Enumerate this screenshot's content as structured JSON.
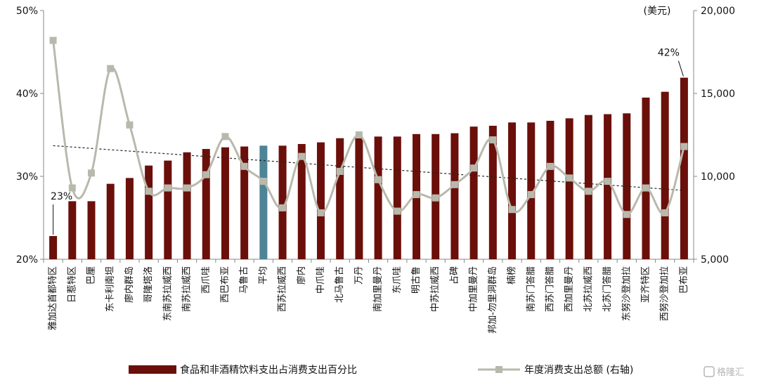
{
  "chart_data": {
    "type": "bar",
    "categories": [
      "雅加达首都特区",
      "日惹特区",
      "巴厘",
      "东卡利南坦",
      "廖内群岛",
      "哥隆塔洛",
      "东南苏拉威西",
      "南苏拉威西",
      "西爪哇",
      "西巴布亚",
      "马鲁古",
      "平均",
      "西苏拉威西",
      "廖内",
      "中爪哇",
      "北马鲁古",
      "万丹",
      "南加里曼丹",
      "东爪哇",
      "明古鲁",
      "中苏拉威西",
      "占碑",
      "中加里曼丹",
      "邦加-勿里洞群岛",
      "楠榜",
      "南苏门答腊",
      "西苏门答腊",
      "西加里曼丹",
      "北苏拉威西",
      "北苏门答腊",
      "东努沙登加拉",
      "亚齐特区",
      "西努沙登加拉",
      "巴布亚"
    ],
    "series": [
      {
        "name": "食品和非酒精饮料支出占消费支出百分比",
        "axis": "left",
        "values": [
          22.8,
          27.0,
          27.0,
          29.1,
          29.8,
          31.3,
          31.9,
          32.9,
          33.3,
          33.5,
          33.6,
          33.7,
          33.7,
          33.9,
          34.1,
          34.6,
          34.8,
          34.8,
          34.8,
          35.1,
          35.1,
          35.2,
          36.0,
          36.1,
          36.5,
          36.5,
          36.7,
          37.0,
          37.4,
          37.5,
          37.6,
          39.5,
          40.2,
          41.9
        ]
      },
      {
        "name": "年度消费支出总额 (右轴)",
        "axis": "right",
        "values": [
          18200,
          9300,
          10200,
          16500,
          13100,
          9100,
          9300,
          9300,
          10100,
          12400,
          10600,
          9700,
          8100,
          11200,
          7800,
          10300,
          12500,
          9800,
          7900,
          8900,
          8700,
          9500,
          10500,
          12200,
          8000,
          8900,
          10600,
          9900,
          9100,
          9700,
          7700,
          9300,
          7800,
          11800
        ]
      }
    ],
    "highlight_category": "平均",
    "colors": {
      "bar": "#6b0f0a",
      "bar_highlight": "#4d8496",
      "line": "#b8b9ac",
      "trend": "#222222"
    },
    "trendline": {
      "from": 33.7,
      "to": 28.3
    },
    "left_axis": {
      "ylim": [
        20,
        50
      ],
      "ticks": [
        "20%",
        "30%",
        "40%",
        "50%"
      ]
    },
    "right_axis": {
      "unit_label": "(美元)",
      "ylim": [
        5000,
        20000
      ],
      "ticks": [
        "5,000",
        "10,000",
        "15,000",
        "20,000"
      ]
    },
    "annotations": [
      {
        "text": "23%",
        "category": "雅加达首都特区",
        "value": 22.8
      },
      {
        "text": "42%",
        "category": "巴布亚",
        "value": 41.9
      }
    ],
    "legend": {
      "placement": "bottom"
    }
  },
  "watermark": {
    "text": "格隆汇"
  }
}
